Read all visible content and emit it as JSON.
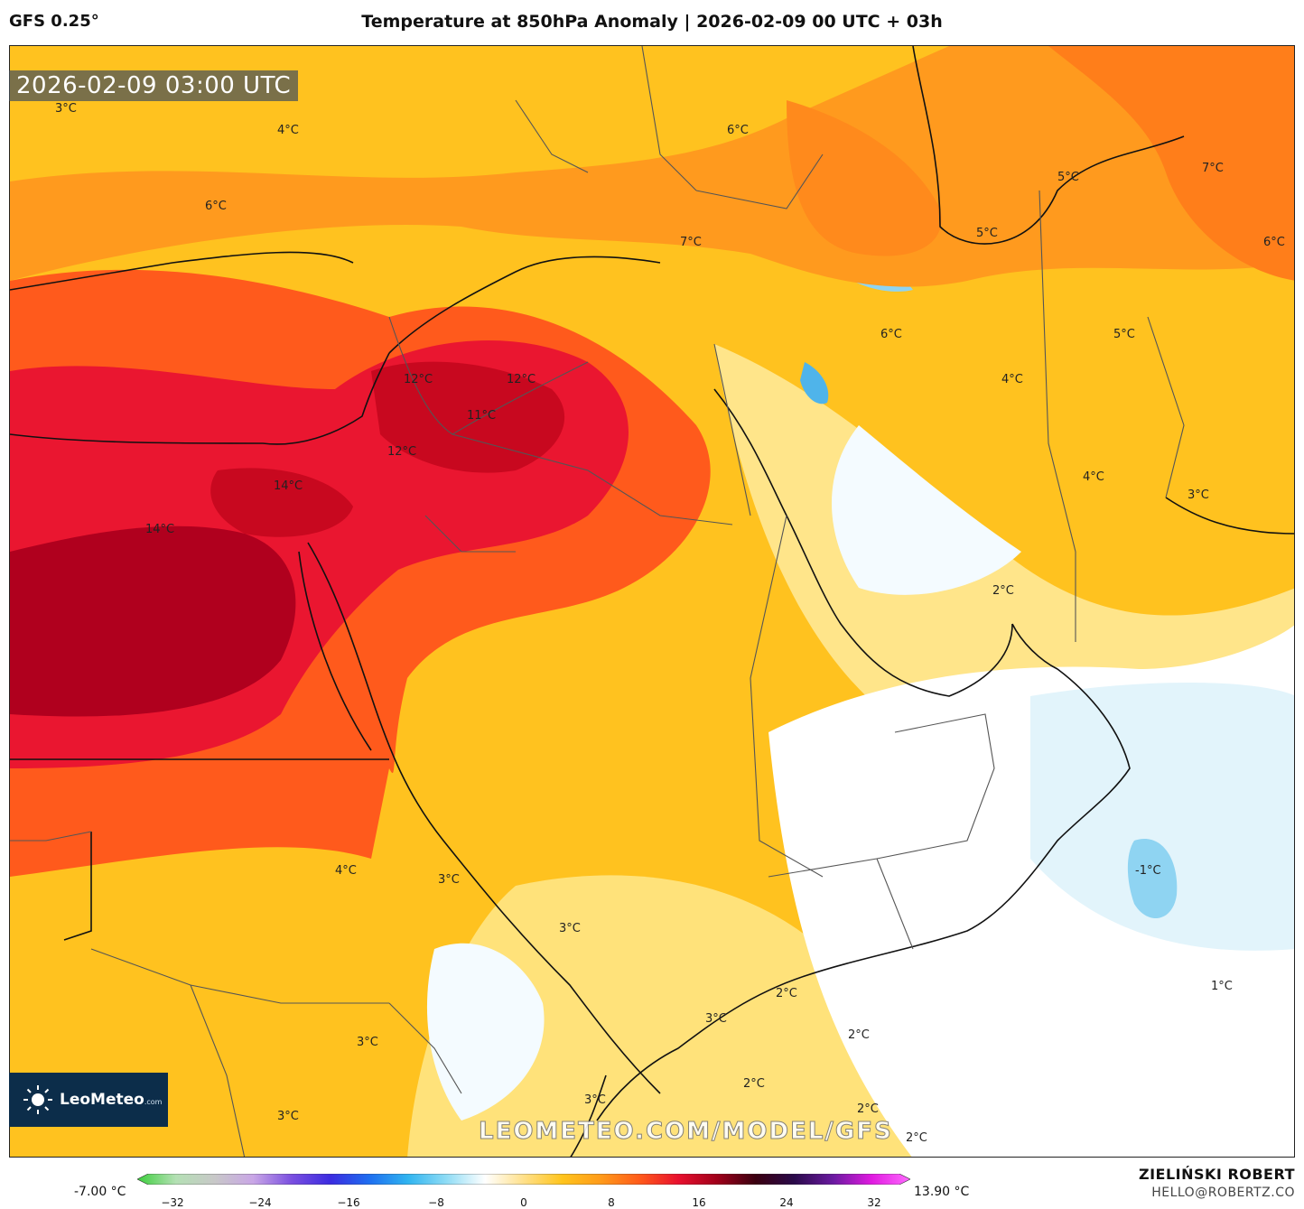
{
  "header": {
    "model": "GFS 0.25°",
    "title": "Temperature at 850hPa Anomaly | 2026-02-09 00 UTC + 03h"
  },
  "timestamp": "2026-02-09 03:00 UTC",
  "watermark": "LEOMETEO.COM/MODEL/GFS",
  "logo": {
    "name": "LeoMeteo",
    "suffix": ".com"
  },
  "colorbar": {
    "min_label": "-7.00 °C",
    "max_label": "13.90 °C",
    "ticks": [
      "−32",
      "−24",
      "−16",
      "−8",
      "0",
      "8",
      "16",
      "24",
      "32"
    ],
    "stops": [
      "#3ccf3c",
      "#b4e0b4",
      "#c8c8c8",
      "#c9a6e6",
      "#7a4fe0",
      "#3b2be0",
      "#1e6ef0",
      "#30b4f0",
      "#8fdcf5",
      "#ffffff",
      "#ffe08a",
      "#ffc41c",
      "#ff9a1a",
      "#ff5a1a",
      "#e8102e",
      "#a0001a",
      "#3a0010",
      "#2a0a4a",
      "#6a1aa0",
      "#e01ae0",
      "#ff6aff"
    ]
  },
  "author": {
    "name": "ZIELIŃSKI ROBERT",
    "email": "HELLO@ROBERTZ.CO"
  },
  "anomaly_labels": [
    "3°C",
    "4°C",
    "6°C",
    "6°C",
    "7°C",
    "5°C",
    "7°C",
    "5°C",
    "6°C",
    "6°C",
    "5°C",
    "4°C",
    "12°C",
    "12°C",
    "11°C",
    "12°C",
    "14°C",
    "14°C",
    "4°C",
    "3°C",
    "3°C",
    "2°C",
    "2°C",
    "-1°C",
    "1°C",
    "4°C",
    "3°C",
    "3°C",
    "3°C",
    "2°C",
    "2°C",
    "3°C",
    "2°C",
    "2°C",
    "3°C"
  ],
  "colors": {
    "extreme": "#a8001c",
    "very_high": "#e8102e",
    "high": "#ff4a1a",
    "mid": "#ff8a1a",
    "moderate": "#ffb21a",
    "low": "#ffd63a",
    "slight": "#ffe98a",
    "neutral": "#ffffff",
    "cool": "#dff2fa",
    "cold": "#5ac0ee"
  }
}
